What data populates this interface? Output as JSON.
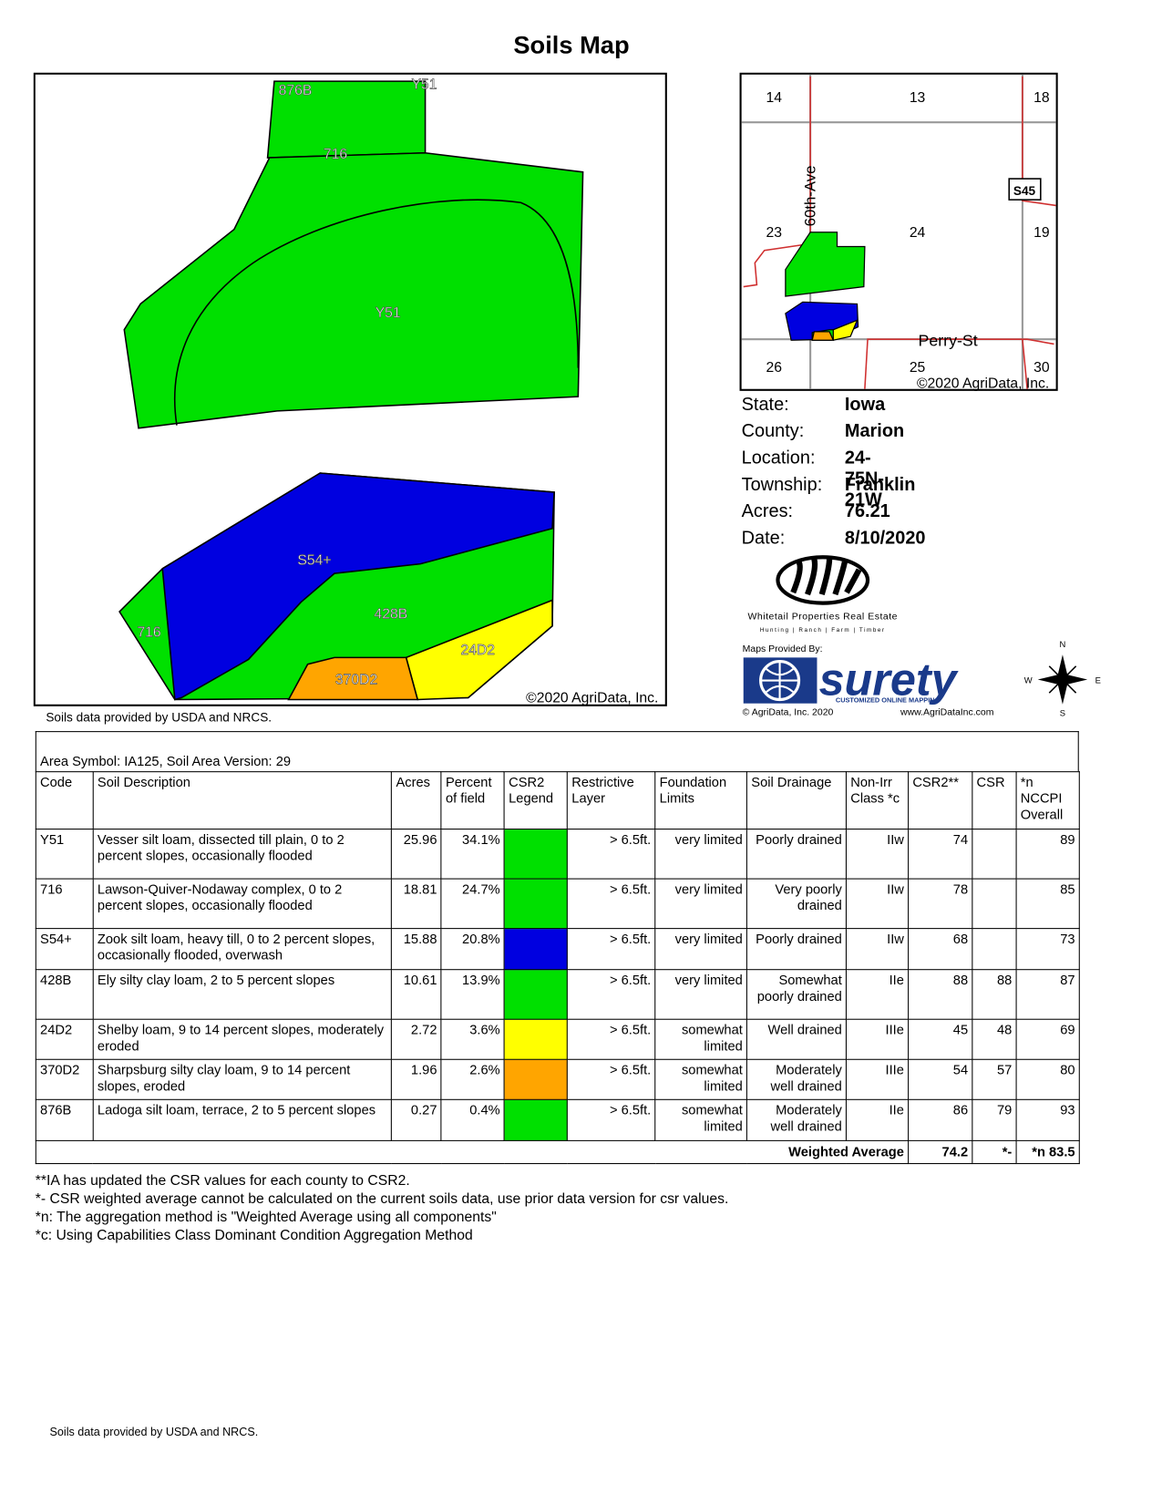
{
  "header": {
    "title": "Soils Map"
  },
  "main_map": {
    "labels": [
      "876B",
      "Y51",
      "716",
      "Y51",
      "S54+",
      "428B",
      "716",
      "24D2",
      "370D2"
    ],
    "copyright": "©2020 AgriData, Inc.",
    "source_note": "Soils data provided by USDA and NRCS."
  },
  "locator_map": {
    "sections": [
      "14",
      "13",
      "18",
      "23",
      "24",
      "19",
      "26",
      "25",
      "30"
    ],
    "roads": [
      "60th-Ave",
      "Perry-St"
    ],
    "highway": "S45",
    "copyright": "©2020 AgriData, Inc."
  },
  "info": [
    {
      "label": "State:",
      "value": "Iowa"
    },
    {
      "label": "County:",
      "value": "Marion"
    },
    {
      "label": "Location:",
      "value": "24-75N-21W"
    },
    {
      "label": "Township:",
      "value": "Franklin"
    },
    {
      "label": "Acres:",
      "value": "76.21"
    },
    {
      "label": "Date:",
      "value": "8/10/2020"
    }
  ],
  "logos": {
    "company": "Whitetail Properties Real Estate",
    "company_tagline": "Hunting | Ranch | Farm | Timber",
    "maps_by": "Maps Provided By:",
    "brand": "surety",
    "brand_tagline": "CUSTOMIZED ONLINE MAPPING",
    "brand_copyright": "© AgriData, Inc. 2020",
    "brand_url": "www.AgriDataInc.com",
    "compass": [
      "N",
      "E",
      "S",
      "W"
    ]
  },
  "table": {
    "caption": "Area Symbol: IA125, Soil Area Version: 29",
    "columns": [
      "Code",
      "Soil Description",
      "Acres",
      "Percent of field",
      "CSR2 Legend",
      "Restrictive Layer",
      "Foundation Limits",
      "Soil Drainage",
      "Non-Irr Class *c",
      "CSR2**",
      "CSR",
      "*n NCCPI Overall"
    ],
    "rows": [
      {
        "code": "Y51",
        "description": "Vesser silt loam, dissected till plain, 0 to 2 percent slopes, occasionally flooded",
        "acres": "25.96",
        "percent": "34.1%",
        "color": "#00e000",
        "restrictive": "> 6.5ft.",
        "foundation": "very limited",
        "drainage": "Poorly drained",
        "class": "IIw",
        "csr2": "74",
        "nccpi": "89"
      },
      {
        "code": "716",
        "description": "Lawson-Quiver-Nodaway complex, 0 to 2 percent slopes, occasionally flooded",
        "acres": "18.81",
        "percent": "24.7%",
        "color": "#00e000",
        "restrictive": "> 6.5ft.",
        "foundation": "very limited",
        "drainage": "Very poorly drained",
        "class": "IIw",
        "csr2": "78",
        "nccpi": "85"
      },
      {
        "code": "S54+",
        "description": "Zook silt loam, heavy till, 0 to 2 percent slopes, occasionally flooded, overwash",
        "acres": "15.88",
        "percent": "20.8%",
        "color": "#0000e0",
        "restrictive": "> 6.5ft.",
        "foundation": "very limited",
        "drainage": "Poorly drained",
        "class": "IIw",
        "csr2": "68",
        "nccpi": "73"
      },
      {
        "code": "428B",
        "description": "Ely silty clay loam, 2 to 5 percent slopes",
        "acres": "10.61",
        "percent": "13.9%",
        "color": "#00e000",
        "restrictive": "> 6.5ft.",
        "foundation": "very limited",
        "drainage": "Somewhat poorly drained",
        "class": "IIe",
        "csr2": "88",
        "csr": "88",
        "nccpi": "87"
      },
      {
        "code": "24D2",
        "description": "Shelby loam, 9 to 14 percent slopes, moderately eroded",
        "acres": "2.72",
        "percent": "3.6%",
        "color": "#ffff00",
        "restrictive": "> 6.5ft.",
        "foundation": "somewhat limited",
        "drainage": "Well drained",
        "class": "IIIe",
        "csr2": "45",
        "csr": "48",
        "nccpi": "69"
      },
      {
        "code": "370D2",
        "description": "Sharpsburg silty clay loam, 9 to 14 percent slopes, eroded",
        "acres": "1.96",
        "percent": "2.6%",
        "color": "#ffa500",
        "restrictive": "> 6.5ft.",
        "foundation": "somewhat limited",
        "drainage": "Moderately well drained",
        "class": "IIIe",
        "csr2": "54",
        "csr": "57",
        "nccpi": "80"
      },
      {
        "code": "876B",
        "description": "Ladoga silt loam, terrace, 2 to 5 percent slopes",
        "acres": "0.27",
        "percent": "0.4%",
        "color": "#00e000",
        "restrictive": "> 6.5ft.",
        "foundation": "somewhat limited",
        "drainage": "Moderately well drained",
        "class": "IIe",
        "csr2": "86",
        "csr": "79",
        "nccpi": "93"
      }
    ],
    "summary": {
      "label": "Weighted Average",
      "csr2": "74.2",
      "csr": "*-",
      "nccpi": "*n 83.5"
    }
  },
  "footnotes": [
    "**IA has updated the CSR values for each county to CSR2.",
    "*- CSR weighted average cannot be calculated on the current soils data, use prior data version for csr values.",
    "*n: The aggregation method is \"Weighted Average using all components\"",
    "*c:  Using Capabilities Class Dominant Condition Aggregation Method"
  ],
  "footer": "Soils data provided by USDA and NRCS."
}
